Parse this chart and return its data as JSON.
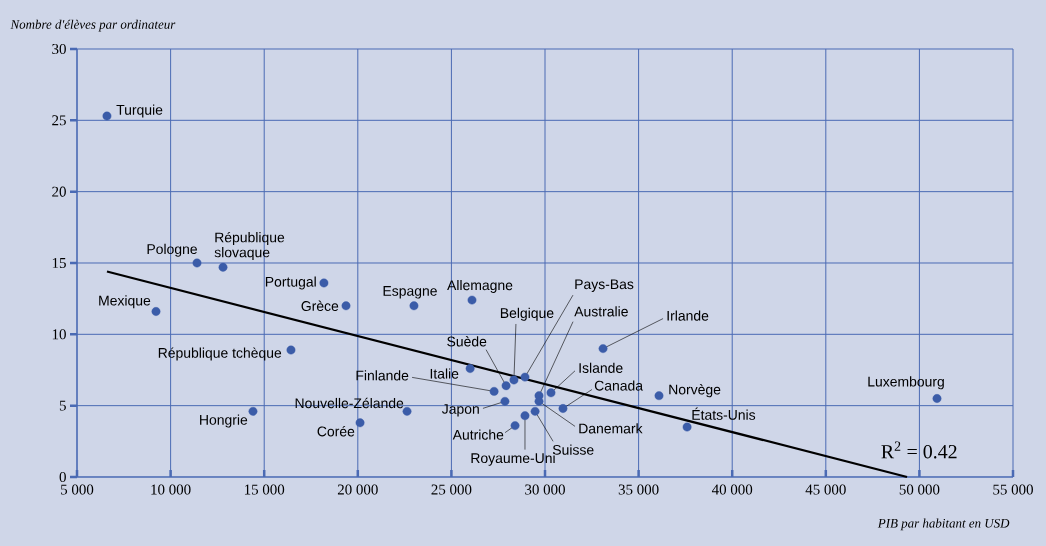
{
  "chart_data": {
    "type": "scatter",
    "xlabel": "PIB par habitant en USD",
    "ylabel": "Nombre d'élèves par ordinateur",
    "xlim": [
      5000,
      55000
    ],
    "ylim": [
      0,
      30
    ],
    "xticks": [
      {
        "value": 5000,
        "label": "5 000"
      },
      {
        "value": 10000,
        "label": "10 000"
      },
      {
        "value": 15000,
        "label": "15 000"
      },
      {
        "value": 20000,
        "label": "20 000"
      },
      {
        "value": 25000,
        "label": "25 000"
      },
      {
        "value": 30000,
        "label": "30 000"
      },
      {
        "value": 35000,
        "label": "35 000"
      },
      {
        "value": 40000,
        "label": "40 000"
      },
      {
        "value": 45000,
        "label": "45 000"
      },
      {
        "value": 50000,
        "label": "50 000"
      },
      {
        "value": 55000,
        "label": "55 000"
      }
    ],
    "yticks": [
      0,
      5,
      10,
      15,
      20,
      25,
      30
    ],
    "grid": true,
    "series": [
      {
        "marker": "circle",
        "color": "#3b5ca8",
        "x": [
          6600,
          9220,
          11410,
          12800,
          16430,
          14400,
          18190,
          19370,
          20120,
          22630,
          23000,
          26100,
          26000,
          27280,
          27860,
          27920,
          28340,
          28930,
          28400,
          28930,
          29470,
          29680,
          29680,
          30320,
          30960,
          33100,
          36090,
          37590,
          50940
        ],
        "values": [
          25.3,
          11.6,
          15.0,
          14.7,
          8.9,
          4.6,
          13.6,
          12.0,
          3.8,
          4.6,
          12.0,
          12.4,
          7.6,
          6.0,
          5.3,
          6.4,
          6.8,
          7.0,
          3.6,
          4.3,
          4.6,
          5.7,
          5.3,
          5.9,
          4.8,
          9.0,
          5.7,
          3.5,
          5.5
        ]
      },
      {
        "type": "line",
        "marker": "none",
        "color": "#000000",
        "x": [
          6600,
          49340
        ],
        "values": [
          14.4,
          0
        ]
      }
    ],
    "annotations": [
      {
        "text": "Turquie",
        "x": 6600,
        "y": 25.3
      },
      {
        "text": "Mexique",
        "x": 9220,
        "y": 11.6
      },
      {
        "text": "Pologne",
        "x": 11410,
        "y": 15.0
      },
      {
        "text": "République slovaque",
        "x": 12800,
        "y": 14.7
      },
      {
        "text": "République tchèque",
        "x": 16430,
        "y": 8.9
      },
      {
        "text": "Hongrie",
        "x": 14400,
        "y": 4.6
      },
      {
        "text": "Portugal",
        "x": 18190,
        "y": 13.6
      },
      {
        "text": "Grèce",
        "x": 19370,
        "y": 12.0
      },
      {
        "text": "Corée",
        "x": 20120,
        "y": 3.8
      },
      {
        "text": "Nouvelle-Zélande",
        "x": 22630,
        "y": 4.6
      },
      {
        "text": "Espagne",
        "x": 23000,
        "y": 12.0
      },
      {
        "text": "Allemagne",
        "x": 26100,
        "y": 12.4
      },
      {
        "text": "Italie",
        "x": 26000,
        "y": 7.6
      },
      {
        "text": "Finlande",
        "x": 27280,
        "y": 6.0
      },
      {
        "text": "Japon",
        "x": 27860,
        "y": 5.3
      },
      {
        "text": "Suède",
        "x": 27920,
        "y": 6.4
      },
      {
        "text": "Belgique",
        "x": 28340,
        "y": 6.8
      },
      {
        "text": "Pays-Bas",
        "x": 28930,
        "y": 7.0
      },
      {
        "text": "Autriche",
        "x": 28400,
        "y": 3.6
      },
      {
        "text": "Royaume-Uni",
        "x": 28930,
        "y": 4.3
      },
      {
        "text": "Suisse",
        "x": 29470,
        "y": 4.6
      },
      {
        "text": "Australie",
        "x": 29680,
        "y": 5.7
      },
      {
        "text": "Danemark",
        "x": 29680,
        "y": 5.3
      },
      {
        "text": "Islande",
        "x": 30320,
        "y": 5.9
      },
      {
        "text": "Canada",
        "x": 30960,
        "y": 4.8
      },
      {
        "text": "Irlande",
        "x": 33100,
        "y": 9.0
      },
      {
        "text": "Norvège",
        "x": 36090,
        "y": 5.7
      },
      {
        "text": "États-Unis",
        "x": 37590,
        "y": 3.5
      },
      {
        "text": "Luxembourg",
        "x": 50940,
        "y": 5.5
      },
      "R$^{2}$ = 0.42"
    ]
  }
}
